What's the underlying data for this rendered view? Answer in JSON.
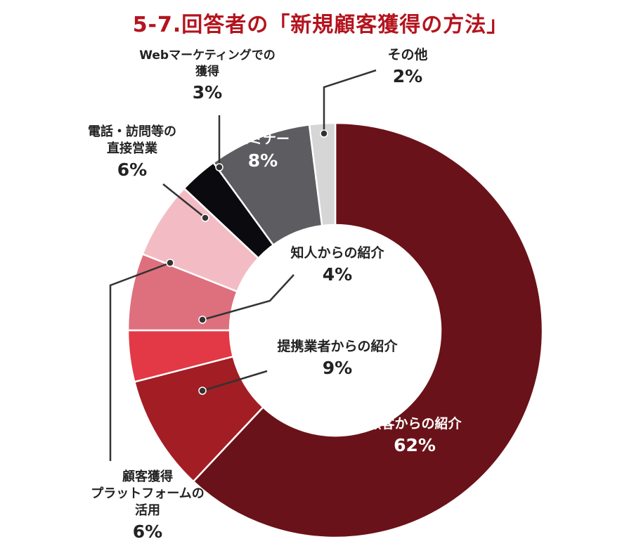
{
  "chart_data": {
    "type": "pie",
    "title": "5-7.回答者の「新規顧客獲得の方法」",
    "hole": true,
    "slices": [
      {
        "label": "顧客からの紹介",
        "pct_label": "62%",
        "value": 62,
        "color": "#6a1219"
      },
      {
        "label": "提携業者からの紹介",
        "pct_label": "9%",
        "value": 9,
        "color": "#a31d24"
      },
      {
        "label": "知人からの紹介",
        "pct_label": "4%",
        "value": 4,
        "color": "#e33845"
      },
      {
        "label": "顧客獲得\nプラットフォームの\n活用",
        "pct_label": "6%",
        "value": 6,
        "color": "#de707e"
      },
      {
        "label": "電話・訪問等の\n直接営業",
        "pct_label": "6%",
        "value": 6,
        "color": "#f3bcc4"
      },
      {
        "label": "Webマーケティングでの\n獲得",
        "pct_label": "3%",
        "value": 3,
        "color": "#0b0b0f"
      },
      {
        "label": "セミナー",
        "pct_label": "8%",
        "value": 8,
        "color": "#5c5c61"
      },
      {
        "label": "その他",
        "pct_label": "2%",
        "value": 2,
        "color": "#d6d6d6"
      }
    ]
  }
}
